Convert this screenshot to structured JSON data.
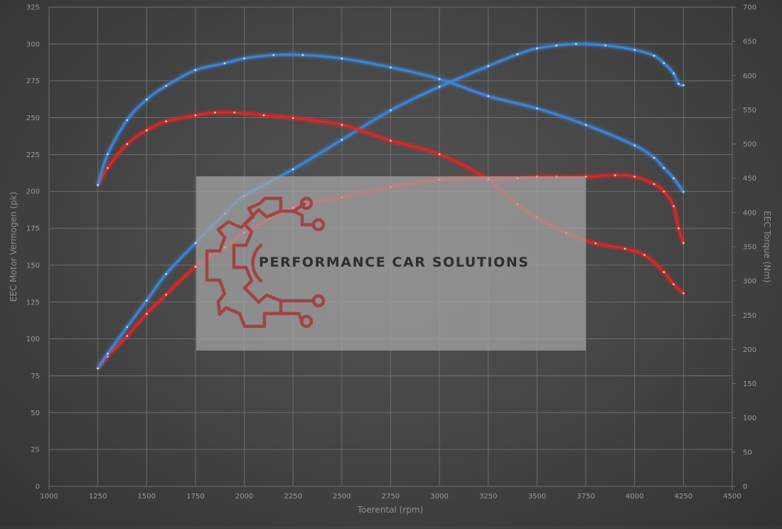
{
  "chart_data": {
    "type": "line",
    "xlabel": "Toerental (rpm)",
    "ylabel_left": "EEC Motor Vermogen (pk)",
    "ylabel_right": "EEC Torque (Nm)",
    "xlim": [
      1000,
      4500
    ],
    "ylim_left": [
      0,
      325
    ],
    "ylim_right": [
      0,
      700
    ],
    "x_ticks": [
      "1000",
      "1250",
      "1500",
      "1750",
      "2000",
      "2250",
      "2500",
      "2750",
      "3000",
      "3250",
      "3500",
      "3750",
      "4000",
      "4250",
      "4500"
    ],
    "y_left_ticks": [
      "0",
      "25",
      "50",
      "75",
      "100",
      "125",
      "150",
      "175",
      "200",
      "225",
      "250",
      "275",
      "300",
      "325"
    ],
    "y_right_ticks": [
      "0",
      "50",
      "100",
      "150",
      "200",
      "250",
      "300",
      "350",
      "400",
      "450",
      "500",
      "550",
      "600",
      "650",
      "700"
    ],
    "grid": true,
    "series": [
      {
        "axis": "left",
        "color": "#e52424",
        "x": [
          1250,
          1300,
          1400,
          1500,
          1600,
          1750,
          1900,
          2000,
          2250,
          2500,
          2750,
          3000,
          3250,
          3400,
          3500,
          3600,
          3750,
          3900,
          4000,
          4100,
          4150,
          4200,
          4225,
          4250
        ],
        "y": [
          80,
          88,
          102,
          117,
          130,
          149,
          162,
          172,
          189,
          196,
          203,
          208,
          209,
          209,
          210,
          210,
          210,
          211,
          210,
          205,
          200,
          190,
          175,
          165
        ]
      },
      {
        "axis": "left",
        "color": "#3d86dd",
        "x": [
          1250,
          1300,
          1400,
          1500,
          1600,
          1750,
          1900,
          2000,
          2250,
          2500,
          2750,
          3000,
          3250,
          3400,
          3500,
          3600,
          3700,
          3850,
          4000,
          4100,
          4150,
          4200,
          4225,
          4250
        ],
        "y": [
          80,
          90,
          108,
          126,
          144,
          165,
          185,
          197,
          215,
          235,
          255,
          271,
          285,
          293,
          297,
          299,
          300,
          299,
          296,
          292,
          287,
          280,
          273,
          272
        ]
      },
      {
        "axis": "right",
        "color": "#e52424",
        "x": [
          1250,
          1300,
          1400,
          1500,
          1600,
          1750,
          1850,
          1950,
          2100,
          2250,
          2500,
          2750,
          3000,
          3250,
          3400,
          3500,
          3650,
          3800,
          3950,
          4050,
          4150,
          4200,
          4250
        ],
        "y": [
          440,
          465,
          500,
          520,
          533,
          542,
          546,
          546,
          542,
          538,
          528,
          505,
          485,
          448,
          412,
          393,
          370,
          355,
          347,
          338,
          313,
          295,
          282
        ]
      },
      {
        "axis": "right",
        "color": "#3d86dd",
        "x": [
          1250,
          1300,
          1400,
          1500,
          1600,
          1750,
          1900,
          2000,
          2150,
          2300,
          2500,
          2750,
          3000,
          3250,
          3500,
          3750,
          4000,
          4100,
          4150,
          4200,
          4250
        ],
        "y": [
          440,
          485,
          535,
          565,
          585,
          608,
          618,
          625,
          630,
          630,
          625,
          612,
          595,
          570,
          552,
          528,
          498,
          480,
          465,
          450,
          430
        ]
      }
    ],
    "watermark": "PERFORMANCE CAR SOLUTIONS"
  }
}
